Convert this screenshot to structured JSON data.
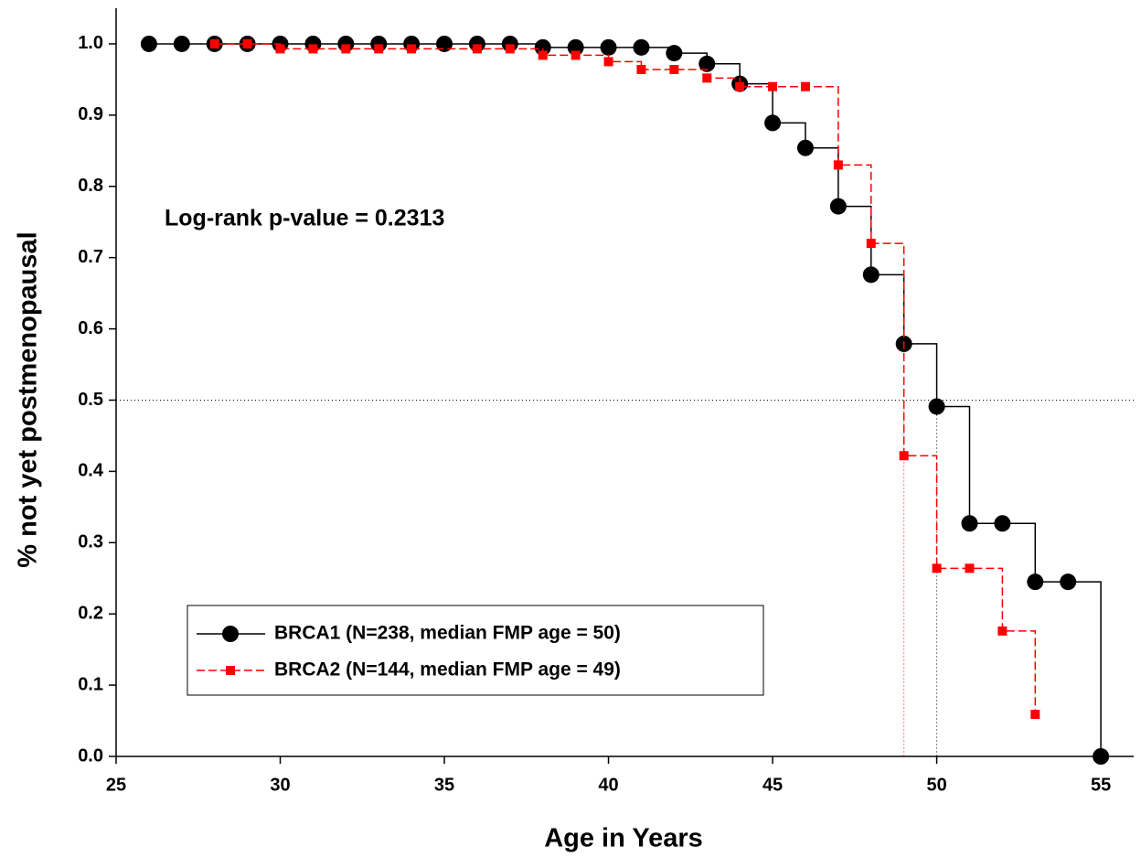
{
  "chart_data": {
    "type": "step",
    "xlabel": "Age in Years",
    "ylabel": "% not yet postmenopausal",
    "annotation": "Log-rank p-value = 0.2313",
    "xlim": [
      25,
      56
    ],
    "xticks": [
      25,
      30,
      35,
      40,
      45,
      50,
      55
    ],
    "ylim": [
      0,
      1.05
    ],
    "yticks": [
      {
        "value": 0,
        "label": "0.0"
      },
      0.1,
      0.2,
      0.3,
      0.4,
      0.5,
      0.6,
      0.7,
      0.8,
      0.9,
      {
        "value": 1,
        "label": "1.0"
      }
    ],
    "reference_y": 0.5,
    "legend": "lower left",
    "series": [
      {
        "name": "BRCA1 (N=238, median FMP age = 50)",
        "color": "#000000",
        "marker": "circle",
        "dashed": false,
        "median": 50,
        "x": [
          26,
          27,
          28,
          29,
          30,
          31,
          32,
          33,
          34,
          35,
          36,
          37,
          38,
          39,
          40,
          41,
          42,
          43,
          44,
          45,
          46,
          47,
          48,
          49,
          50,
          51,
          52,
          53,
          54,
          55
        ],
        "values": [
          1,
          1,
          1,
          1,
          1,
          1,
          1,
          1,
          1,
          1,
          1,
          1,
          0.995,
          0.995,
          0.995,
          0.995,
          0.987,
          0.972,
          0.944,
          0.889,
          0.854,
          0.772,
          0.676,
          0.579,
          0.491,
          0.327,
          0.327,
          0.245,
          0.245,
          0
        ]
      },
      {
        "name": "BRCA2 (N=144, median FMP age = 49)",
        "color": "#ff0000",
        "marker": "square",
        "dashed": true,
        "median": 49,
        "x": [
          28,
          29,
          30,
          31,
          32,
          33,
          34,
          36,
          37,
          38,
          39,
          40,
          41,
          42,
          43,
          44,
          45,
          46,
          47,
          48,
          49,
          50,
          51,
          52,
          53
        ],
        "values": [
          1,
          1,
          0.993,
          0.993,
          0.993,
          0.993,
          0.993,
          0.993,
          0.993,
          0.984,
          0.984,
          0.975,
          0.964,
          0.964,
          0.952,
          0.94,
          0.94,
          0.94,
          0.83,
          0.72,
          0.422,
          0.264,
          0.264,
          0.176,
          0.059
        ]
      }
    ]
  }
}
